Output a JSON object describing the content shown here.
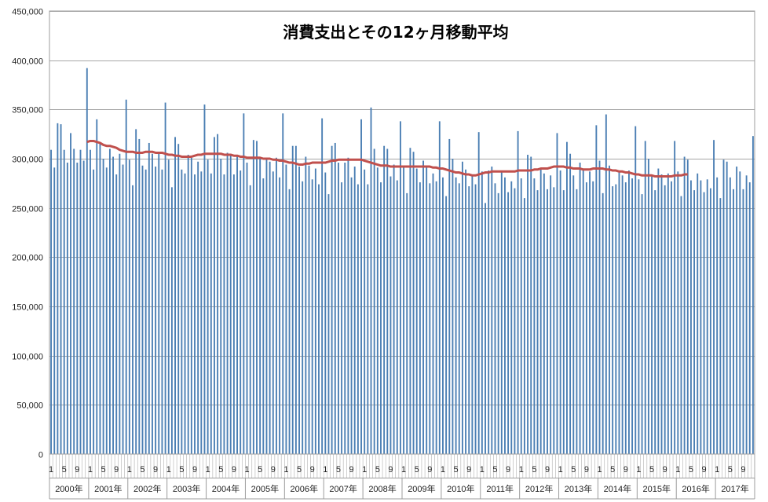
{
  "chart_data": {
    "type": "bar",
    "title": "消費支出とその12ヶ月移動平均",
    "xlabel": "",
    "ylabel": "",
    "ylim": [
      0,
      450000
    ],
    "yticks": [
      0,
      50000,
      100000,
      150000,
      200000,
      250000,
      300000,
      350000,
      400000,
      450000
    ],
    "ytick_labels": [
      "0",
      "50,000",
      "100,000",
      "150,000",
      "200,000",
      "250,000",
      "300,000",
      "350,000",
      "400,000",
      "450,000"
    ],
    "grid": true,
    "legend": "none",
    "bar_color": "#4a7eb3",
    "line_color": "#c0504d",
    "years": [
      "2000年",
      "2001年",
      "2002年",
      "2003年",
      "2004年",
      "2005年",
      "2006年",
      "2007年",
      "2008年",
      "2009年",
      "2010年",
      "2011年",
      "2012年",
      "2013年",
      "2014年",
      "2015年",
      "2016年",
      "2017年"
    ],
    "month_tick_labels": [
      "1",
      "5",
      "9"
    ],
    "series": [
      {
        "type": "bar",
        "values": [
          309000,
          291000,
          336000,
          335000,
          309000,
          296000,
          326000,
          310000,
          296000,
          309000,
          298000,
          392000,
          309000,
          289000,
          340000,
          316000,
          300000,
          291000,
          310000,
          302000,
          284000,
          305000,
          294000,
          360000,
          299000,
          273000,
          330000,
          320000,
          293000,
          289000,
          316000,
          305000,
          292000,
          306000,
          289000,
          357000,
          299000,
          271000,
          322000,
          315000,
          289000,
          285000,
          304000,
          301000,
          284000,
          297000,
          287000,
          355000,
          299000,
          285000,
          322000,
          325000,
          300000,
          284000,
          306000,
          303000,
          284000,
          302000,
          288000,
          346000,
          296000,
          273000,
          319000,
          318000,
          300000,
          280000,
          301000,
          297000,
          287000,
          301000,
          281000,
          346000,
          294000,
          269000,
          313000,
          313000,
          292000,
          277000,
          302000,
          293000,
          279000,
          290000,
          274000,
          341000,
          286000,
          264000,
          313000,
          316000,
          296000,
          276000,
          296000,
          301000,
          281000,
          292000,
          274000,
          340000,
          289000,
          274000,
          352000,
          310000,
          291000,
          276000,
          313000,
          310000,
          282000,
          294000,
          278000,
          338000,
          293000,
          265000,
          311000,
          307000,
          290000,
          276000,
          298000,
          291000,
          275000,
          285000,
          277000,
          338000,
          281000,
          262000,
          320000,
          300000,
          281000,
          275000,
          297000,
          289000,
          272000,
          283000,
          274000,
          327000,
          287000,
          255000,
          288000,
          292000,
          275000,
          265000,
          287000,
          281000,
          266000,
          277000,
          270000,
          328000,
          280000,
          260000,
          304000,
          302000,
          280000,
          268000,
          290000,
          285000,
          269000,
          283000,
          271000,
          326000,
          288000,
          268000,
          317000,
          305000,
          283000,
          269000,
          296000,
          290000,
          276000,
          287000,
          277000,
          334000,
          298000,
          265000,
          345000,
          293000,
          272000,
          274000,
          286000,
          283000,
          276000,
          288000,
          280000,
          333000,
          279000,
          264000,
          318000,
          300000,
          282000,
          268000,
          290000,
          284000,
          273000,
          285000,
          277000,
          318000,
          287000,
          262000,
          302000,
          299000,
          278000,
          268000,
          285000,
          278000,
          266000,
          279000,
          270000,
          319000,
          281000,
          260000,
          299000,
          297000,
          281000,
          269000,
          292000,
          287000,
          269000,
          283000,
          276000,
          323000
        ]
      },
      {
        "type": "line",
        "name": "12ヶ月移動平均",
        "start_index": 11,
        "values": [
          317000,
          318000,
          318000,
          317000,
          316000,
          314000,
          313000,
          313000,
          312000,
          311000,
          309000,
          308000,
          307000,
          307000,
          307000,
          306000,
          306000,
          306000,
          307000,
          307000,
          307000,
          306000,
          306000,
          306000,
          305000,
          304000,
          304000,
          303000,
          303000,
          302000,
          302000,
          302000,
          302000,
          303000,
          304000,
          304000,
          305000,
          305000,
          305000,
          305000,
          305000,
          305000,
          304000,
          304000,
          304000,
          303000,
          303000,
          302000,
          302000,
          301000,
          301000,
          301000,
          301000,
          301000,
          300000,
          300000,
          300000,
          299000,
          299000,
          298000,
          298000,
          297000,
          296000,
          296000,
          295000,
          294000,
          294000,
          295000,
          295000,
          296000,
          296000,
          296000,
          296000,
          296000,
          297000,
          298000,
          298000,
          299000,
          299000,
          299000,
          299000,
          299000,
          299000,
          299000,
          299000,
          298000,
          297000,
          296000,
          295000,
          294000,
          293000,
          293000,
          293000,
          292000,
          292000,
          292000,
          292000,
          292000,
          292000,
          292000,
          292000,
          292000,
          292000,
          292000,
          292000,
          292000,
          291000,
          291000,
          290000,
          290000,
          289000,
          288000,
          287000,
          286000,
          286000,
          285000,
          284000,
          284000,
          283000,
          283000,
          284000,
          285000,
          286000,
          286000,
          287000,
          287000,
          287000,
          287000,
          287000,
          287000,
          287000,
          287000,
          288000,
          288000,
          288000,
          288000,
          288000,
          289000,
          289000,
          290000,
          290000,
          290000,
          291000,
          292000,
          292000,
          292000,
          292000,
          291000,
          291000,
          290000,
          290000,
          290000,
          289000,
          289000,
          289000,
          290000,
          290000,
          290000,
          290000,
          289000,
          289000,
          288000,
          288000,
          287000,
          287000,
          286000,
          286000,
          285000,
          284000,
          284000,
          283000,
          283000,
          283000,
          283000,
          282000,
          282000,
          282000,
          282000,
          282000,
          282000,
          283000,
          283000,
          283000,
          284000,
          284000
        ]
      }
    ]
  }
}
